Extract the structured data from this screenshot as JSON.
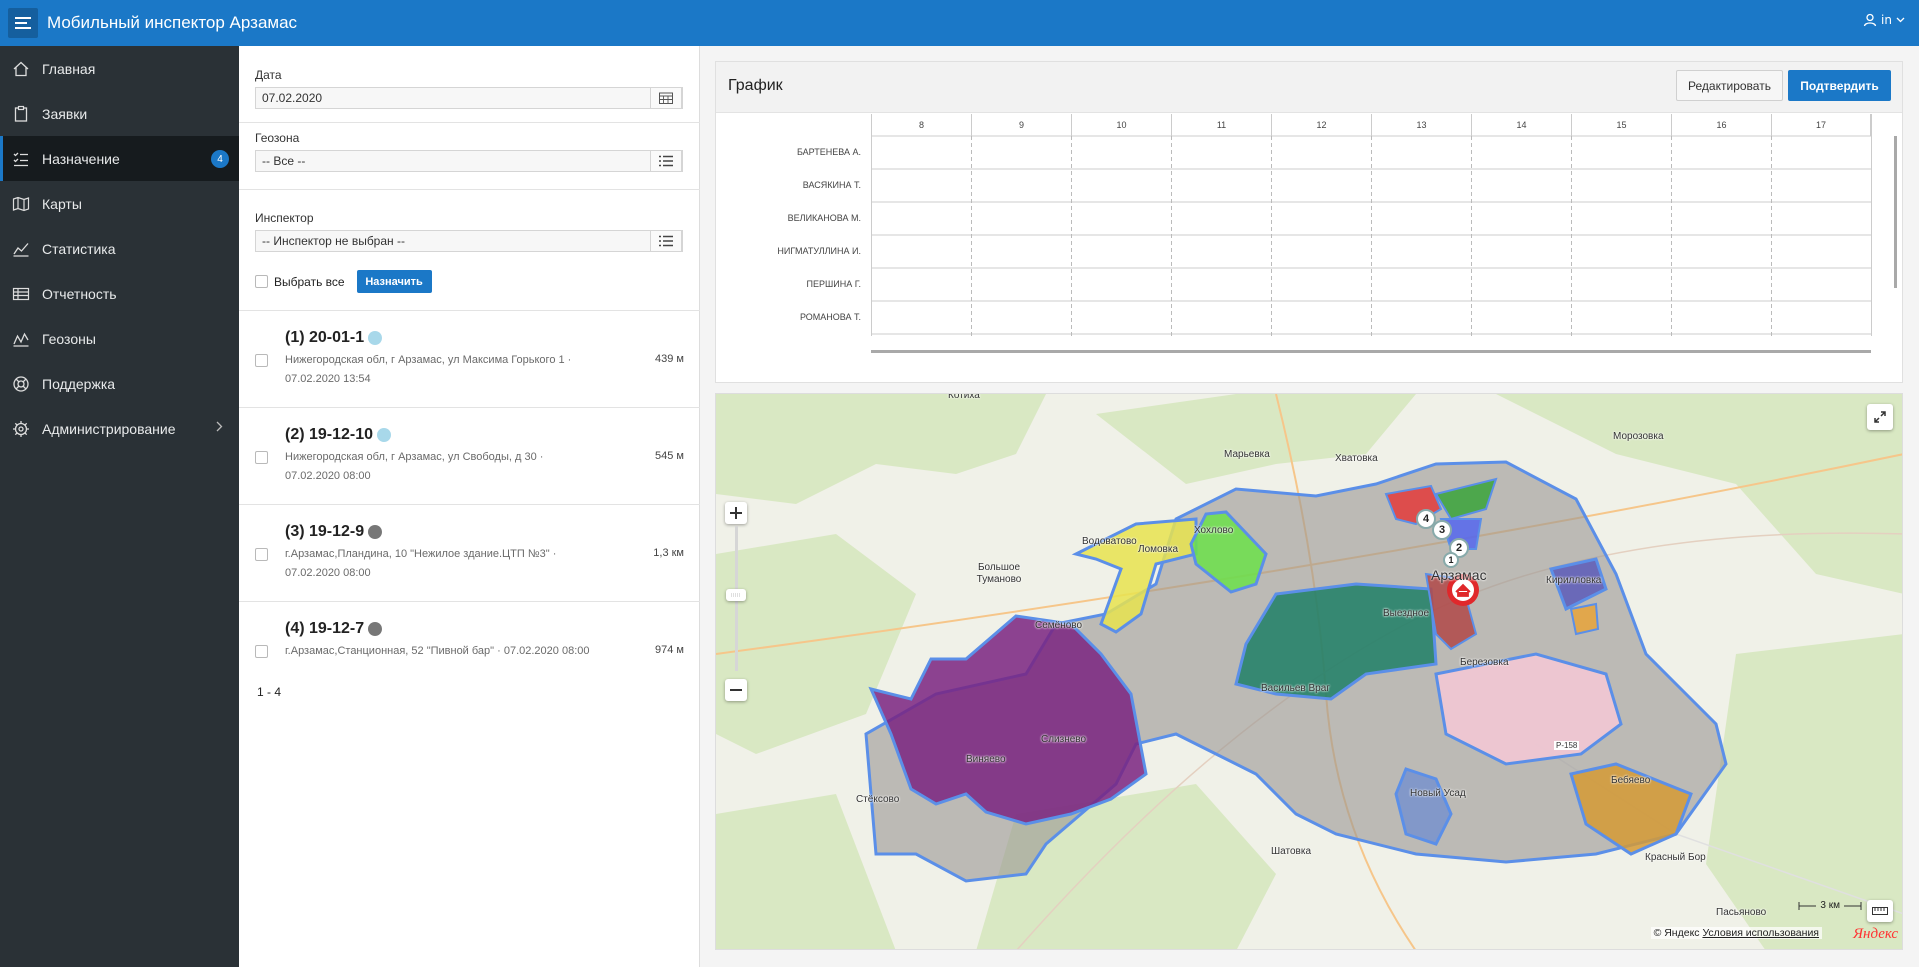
{
  "header": {
    "title": "Мобильный инспектор Арзамас",
    "user": "in"
  },
  "sidebar": {
    "items": [
      {
        "label": "Главная",
        "icon": "home-icon"
      },
      {
        "label": "Заявки",
        "icon": "clipboard-icon"
      },
      {
        "label": "Назначение",
        "icon": "checklist-icon",
        "badge": "4",
        "active": true
      },
      {
        "label": "Карты",
        "icon": "map-icon"
      },
      {
        "label": "Статистика",
        "icon": "line-chart-icon"
      },
      {
        "label": "Отчетность",
        "icon": "table-icon"
      },
      {
        "label": "Геозоны",
        "icon": "geozone-chart-icon"
      },
      {
        "label": "Поддержка",
        "icon": "lifebuoy-icon"
      },
      {
        "label": "Администрирование",
        "icon": "gear-icon",
        "has_children": true
      }
    ]
  },
  "filters": {
    "date_label": "Дата",
    "date_value": "07.02.2020",
    "geozone_label": "Геозона",
    "geozone_value": "-- Все --",
    "inspector_label": "Инспектор",
    "inspector_value": "-- Инспектор не выбран --",
    "select_all_label": "Выбрать все",
    "assign_button": "Назначить"
  },
  "requests": [
    {
      "title": "(1) 20-01-1",
      "status_color": "#a8d8ea",
      "address": "Нижегородская обл, г Арзамас, ул Максима Горького 1 ·",
      "time": "07.02.2020 13:54",
      "distance": "439 м"
    },
    {
      "title": "(2) 19-12-10",
      "status_color": "#a8d8ea",
      "address": "Нижегородская обл, г Арзамас, ул Свободы, д 30 ·",
      "time": "07.02.2020 08:00",
      "distance": "545 м"
    },
    {
      "title": "(3) 19-12-9",
      "status_color": "#777777",
      "address": "г.Арзамас,Пландина, 10 \"Нежилое здание.ЦТП №3\" ·",
      "time": "07.02.2020 08:00",
      "distance": "1,3 км"
    },
    {
      "title": "(4) 19-12-7",
      "status_color": "#777777",
      "address": "г.Арзамас,Станционная, 52 \"Пивной бар\" · 07.02.2020 08:00",
      "time": "",
      "distance": "974 м"
    }
  ],
  "pagination": "1 - 4",
  "schedule": {
    "title": "График",
    "edit_button": "Редактировать",
    "confirm_button": "Подтвердить",
    "hours": [
      "8",
      "9",
      "10",
      "11",
      "12",
      "13",
      "14",
      "15",
      "16",
      "17"
    ],
    "inspectors": [
      "БАРТЕНЕВА А.",
      "ВАСЯКИНА Т.",
      "ВЕЛИКАНОВА М.",
      "НИГМАТУЛЛИНА И.",
      "ПЕРШИНА Г.",
      "РОМАНОВА Т."
    ]
  },
  "map": {
    "places": [
      "Котиха",
      "Марьевка",
      "Хватовка",
      "Морозовка",
      "Водоватово",
      "Большое Туманово",
      "Хохлово",
      "Ломовка",
      "Кирилловка",
      "Арзамас",
      "Выездное",
      "Березовка",
      "Семёново",
      "Васильев Враг",
      "Слизнево",
      "Виняево",
      "Стёксово",
      "Новый Усад",
      "Бебяево",
      "Шатовка",
      "Красный Бор",
      "Пасьяново",
      "Р-158"
    ],
    "markers": [
      "4",
      "3",
      "2",
      "1"
    ],
    "scale_label": "3 км",
    "copyright": "© Яндекс",
    "terms_link": "Условия использования",
    "brand": "Яндекс"
  }
}
